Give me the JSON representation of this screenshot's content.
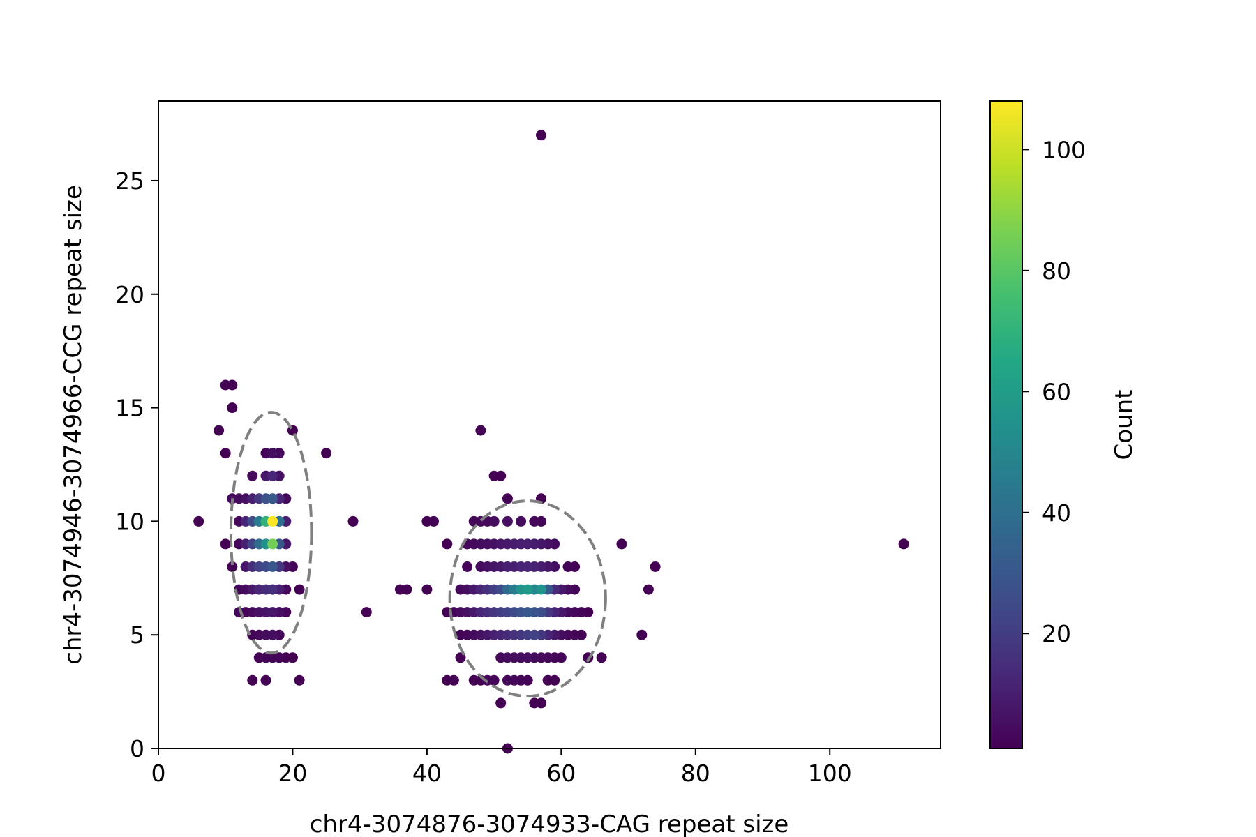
{
  "chart_data": {
    "type": "scatter",
    "xlabel": "chr4-3074876-3074933-CAG repeat size",
    "ylabel": "chr4-3074946-3074966-CCG repeat size",
    "xlim": [
      0,
      116.5
    ],
    "ylim": [
      0,
      28.5
    ],
    "xticks": [
      "0",
      "20",
      "40",
      "60",
      "80",
      "100"
    ],
    "yticks": [
      "0",
      "5",
      "10",
      "15",
      "20",
      "25"
    ],
    "grid": false,
    "colormap": "viridis",
    "colorbar": {
      "label": "Count",
      "range": [
        1,
        108
      ],
      "ticks": [
        "20",
        "40",
        "60",
        "80",
        "100"
      ]
    },
    "points": [
      [
        6,
        10,
        1
      ],
      [
        9,
        14,
        1
      ],
      [
        10,
        16,
        1
      ],
      [
        11,
        16,
        1
      ],
      [
        10,
        13,
        1
      ],
      [
        11,
        15,
        1
      ],
      [
        10,
        9,
        1
      ],
      [
        11,
        8,
        1
      ],
      [
        12,
        7,
        2
      ],
      [
        12,
        6,
        2
      ],
      [
        11,
        11,
        3
      ],
      [
        12,
        10,
        3
      ],
      [
        12,
        11,
        4
      ],
      [
        12,
        9,
        3
      ],
      [
        13,
        6,
        2
      ],
      [
        13,
        11,
        6
      ],
      [
        13,
        10,
        12
      ],
      [
        13,
        9,
        10
      ],
      [
        13,
        8,
        7
      ],
      [
        13,
        7,
        4
      ],
      [
        14,
        12,
        3
      ],
      [
        14,
        11,
        10
      ],
      [
        14,
        10,
        25
      ],
      [
        14,
        9,
        22
      ],
      [
        14,
        8,
        15
      ],
      [
        14,
        7,
        8
      ],
      [
        14,
        6,
        3
      ],
      [
        14,
        5,
        2
      ],
      [
        14,
        3,
        1
      ],
      [
        15,
        11,
        18
      ],
      [
        15,
        10,
        45
      ],
      [
        15,
        9,
        38
      ],
      [
        15,
        8,
        22
      ],
      [
        15,
        7,
        12
      ],
      [
        15,
        6,
        6
      ],
      [
        15,
        5,
        3
      ],
      [
        15,
        4,
        1
      ],
      [
        16,
        13,
        2
      ],
      [
        16,
        12,
        8
      ],
      [
        16,
        11,
        28
      ],
      [
        16,
        10,
        70
      ],
      [
        16,
        9,
        55
      ],
      [
        16,
        8,
        25
      ],
      [
        16,
        7,
        14
      ],
      [
        16,
        6,
        7
      ],
      [
        16,
        5,
        4
      ],
      [
        16,
        4,
        2
      ],
      [
        16,
        3,
        1
      ],
      [
        17,
        13,
        5
      ],
      [
        17,
        12,
        12
      ],
      [
        17,
        11,
        30
      ],
      [
        17,
        10,
        108
      ],
      [
        17,
        9,
        85
      ],
      [
        17,
        8,
        30
      ],
      [
        17,
        7,
        15
      ],
      [
        17,
        6,
        8
      ],
      [
        17,
        5,
        5
      ],
      [
        17,
        4,
        2
      ],
      [
        18,
        13,
        3
      ],
      [
        18,
        12,
        6
      ],
      [
        18,
        11,
        12
      ],
      [
        18,
        10,
        40
      ],
      [
        18,
        9,
        30
      ],
      [
        18,
        8,
        18
      ],
      [
        18,
        7,
        10
      ],
      [
        18,
        6,
        5
      ],
      [
        18,
        5,
        3
      ],
      [
        18,
        4,
        2
      ],
      [
        19,
        11,
        4
      ],
      [
        19,
        10,
        10
      ],
      [
        19,
        9,
        8
      ],
      [
        19,
        8,
        6
      ],
      [
        19,
        7,
        3
      ],
      [
        19,
        6,
        2
      ],
      [
        19,
        4,
        1
      ],
      [
        20,
        14,
        1
      ],
      [
        20,
        8,
        2
      ],
      [
        20,
        4,
        1
      ],
      [
        21,
        7,
        1
      ],
      [
        21,
        3,
        1
      ],
      [
        25,
        13,
        1
      ],
      [
        29,
        10,
        1
      ],
      [
        31,
        6,
        1
      ],
      [
        36,
        7,
        1
      ],
      [
        37,
        7,
        1
      ],
      [
        40,
        10,
        1
      ],
      [
        40,
        7,
        1
      ],
      [
        41,
        10,
        1
      ],
      [
        43,
        9,
        1
      ],
      [
        43,
        6,
        1
      ],
      [
        43,
        3,
        1
      ],
      [
        44,
        6,
        2
      ],
      [
        44,
        3,
        1
      ],
      [
        45,
        7,
        3
      ],
      [
        45,
        6,
        4
      ],
      [
        45,
        5,
        2
      ],
      [
        45,
        4,
        1
      ],
      [
        46,
        9,
        2
      ],
      [
        46,
        8,
        2
      ],
      [
        46,
        7,
        5
      ],
      [
        46,
        6,
        6
      ],
      [
        46,
        5,
        3
      ],
      [
        47,
        10,
        2
      ],
      [
        47,
        9,
        3
      ],
      [
        47,
        7,
        8
      ],
      [
        47,
        6,
        8
      ],
      [
        47,
        5,
        4
      ],
      [
        47,
        3,
        1
      ],
      [
        48,
        14,
        1
      ],
      [
        48,
        10,
        3
      ],
      [
        48,
        9,
        4
      ],
      [
        48,
        8,
        4
      ],
      [
        48,
        7,
        12
      ],
      [
        48,
        6,
        12
      ],
      [
        48,
        5,
        6
      ],
      [
        48,
        3,
        1
      ],
      [
        49,
        10,
        3
      ],
      [
        49,
        9,
        5
      ],
      [
        49,
        8,
        6
      ],
      [
        49,
        7,
        16
      ],
      [
        49,
        6,
        15
      ],
      [
        49,
        5,
        8
      ],
      [
        49,
        3,
        2
      ],
      [
        50,
        12,
        1
      ],
      [
        50,
        10,
        4
      ],
      [
        50,
        9,
        6
      ],
      [
        50,
        8,
        7
      ],
      [
        50,
        7,
        20
      ],
      [
        50,
        6,
        18
      ],
      [
        50,
        5,
        10
      ],
      [
        50,
        3,
        2
      ],
      [
        51,
        12,
        1
      ],
      [
        51,
        9,
        7
      ],
      [
        51,
        8,
        8
      ],
      [
        51,
        7,
        25
      ],
      [
        51,
        6,
        20
      ],
      [
        51,
        5,
        12
      ],
      [
        51,
        4,
        3
      ],
      [
        51,
        2,
        1
      ],
      [
        52,
        11,
        1
      ],
      [
        52,
        10,
        5
      ],
      [
        52,
        9,
        8
      ],
      [
        52,
        8,
        10
      ],
      [
        52,
        7,
        38
      ],
      [
        52,
        6,
        22
      ],
      [
        52,
        5,
        14
      ],
      [
        52,
        4,
        4
      ],
      [
        52,
        3,
        2
      ],
      [
        52,
        0,
        1
      ],
      [
        53,
        9,
        9
      ],
      [
        53,
        8,
        10
      ],
      [
        53,
        7,
        45
      ],
      [
        53,
        6,
        25
      ],
      [
        53,
        5,
        16
      ],
      [
        53,
        4,
        4
      ],
      [
        53,
        3,
        2
      ],
      [
        54,
        10,
        4
      ],
      [
        54,
        9,
        10
      ],
      [
        54,
        8,
        12
      ],
      [
        54,
        7,
        55
      ],
      [
        54,
        6,
        28
      ],
      [
        54,
        5,
        18
      ],
      [
        54,
        4,
        5
      ],
      [
        54,
        3,
        2
      ],
      [
        55,
        9,
        10
      ],
      [
        55,
        8,
        12
      ],
      [
        55,
        7,
        58
      ],
      [
        55,
        6,
        30
      ],
      [
        55,
        5,
        20
      ],
      [
        55,
        4,
        5
      ],
      [
        55,
        3,
        2
      ],
      [
        56,
        10,
        3
      ],
      [
        56,
        9,
        9
      ],
      [
        56,
        8,
        11
      ],
      [
        56,
        7,
        50
      ],
      [
        56,
        6,
        28
      ],
      [
        56,
        5,
        22
      ],
      [
        56,
        4,
        4
      ],
      [
        56,
        2,
        1
      ],
      [
        57,
        27,
        1
      ],
      [
        57,
        11,
        1
      ],
      [
        57,
        10,
        2
      ],
      [
        57,
        9,
        7
      ],
      [
        57,
        8,
        9
      ],
      [
        57,
        7,
        55
      ],
      [
        57,
        6,
        26
      ],
      [
        57,
        5,
        18
      ],
      [
        57,
        4,
        3
      ],
      [
        57,
        2,
        1
      ],
      [
        58,
        9,
        6
      ],
      [
        58,
        8,
        7
      ],
      [
        58,
        7,
        30
      ],
      [
        58,
        6,
        18
      ],
      [
        58,
        5,
        12
      ],
      [
        58,
        4,
        3
      ],
      [
        58,
        3,
        1
      ],
      [
        59,
        9,
        4
      ],
      [
        59,
        8,
        5
      ],
      [
        59,
        7,
        14
      ],
      [
        59,
        6,
        12
      ],
      [
        59,
        5,
        8
      ],
      [
        59,
        4,
        2
      ],
      [
        59,
        3,
        1
      ],
      [
        60,
        7,
        8
      ],
      [
        60,
        6,
        8
      ],
      [
        60,
        5,
        5
      ],
      [
        60,
        4,
        2
      ],
      [
        61,
        8,
        2
      ],
      [
        61,
        7,
        4
      ],
      [
        61,
        6,
        4
      ],
      [
        61,
        5,
        3
      ],
      [
        62,
        8,
        1
      ],
      [
        62,
        7,
        2
      ],
      [
        62,
        6,
        3
      ],
      [
        62,
        5,
        2
      ],
      [
        63,
        6,
        2
      ],
      [
        63,
        5,
        1
      ],
      [
        64,
        6,
        1
      ],
      [
        64,
        4,
        1
      ],
      [
        66,
        4,
        1
      ],
      [
        69,
        9,
        1
      ],
      [
        72,
        5,
        1
      ],
      [
        73,
        7,
        1
      ],
      [
        74,
        8,
        1
      ],
      [
        111,
        9,
        1
      ]
    ],
    "ellipses": [
      {
        "cx": 16.8,
        "cy": 9.5,
        "rx": 6.0,
        "ry": 5.3
      },
      {
        "cx": 55.0,
        "cy": 6.6,
        "rx": 11.6,
        "ry": 4.3
      }
    ]
  }
}
